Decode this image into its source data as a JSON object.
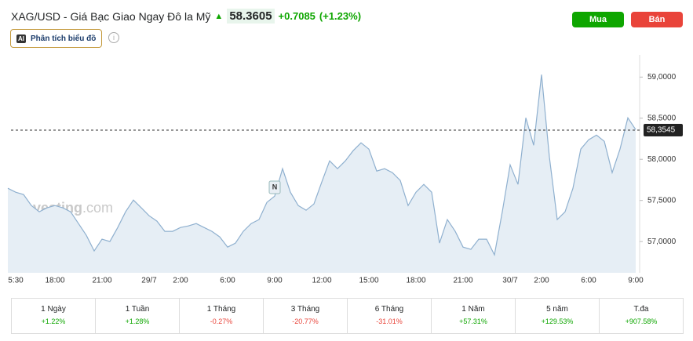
{
  "header": {
    "title": "XAG/USD - Giá Bạc Giao Ngay Đô la Mỹ",
    "price": "58.3605",
    "change": "+0.7085",
    "change_pct": "(+1.23%)"
  },
  "buttons": {
    "buy": "Mua",
    "sell": "Bán",
    "analysis": "Phân tích biểu đồ",
    "analysis_icon": "AI"
  },
  "chart_data": {
    "type": "area",
    "categories": [
      null,
      "5:30",
      null,
      null,
      null,
      null,
      "18:00",
      null,
      null,
      null,
      null,
      null,
      "21:00",
      null,
      null,
      null,
      null,
      null,
      "29/7",
      null,
      null,
      null,
      "2:00",
      null,
      null,
      null,
      null,
      null,
      "6:00",
      null,
      null,
      null,
      null,
      null,
      "9:00",
      null,
      null,
      null,
      null,
      null,
      "12:00",
      null,
      null,
      null,
      null,
      null,
      "15:00",
      null,
      null,
      null,
      null,
      null,
      "18:00",
      null,
      null,
      null,
      null,
      null,
      "21:00",
      null,
      null,
      null,
      null,
      null,
      "30/7",
      null,
      null,
      null,
      "2:00",
      null,
      null,
      null,
      null,
      null,
      "6:00",
      null,
      null,
      null,
      null,
      null,
      "9:00"
    ],
    "series": [
      {
        "name": "XAG/USD",
        "color": "#8fb0cf",
        "values": [
          57.648,
          57.6,
          57.571,
          57.438,
          57.362,
          57.41,
          57.438,
          57.41,
          57.362,
          57.219,
          57.076,
          56.886,
          57.029,
          57.0,
          57.171,
          57.362,
          57.505,
          57.41,
          57.314,
          57.248,
          57.124,
          57.124,
          57.171,
          57.19,
          57.219,
          57.171,
          57.124,
          57.057,
          56.933,
          56.981,
          57.124,
          57.219,
          57.267,
          57.476,
          57.552,
          57.886,
          57.6,
          57.438,
          57.381,
          57.457,
          57.724,
          57.981,
          57.886,
          57.981,
          58.105,
          58.2,
          58.124,
          57.857,
          57.886,
          57.838,
          57.743,
          57.438,
          57.6,
          57.695,
          57.6,
          56.981,
          57.267,
          57.124,
          56.933,
          56.905,
          57.029,
          57.029,
          56.838,
          57.362,
          57.933,
          57.695,
          58.505,
          58.171,
          59.03,
          58.029,
          57.267,
          57.362,
          57.648,
          58.124,
          58.238,
          58.295,
          58.219,
          57.838,
          58.124,
          58.505,
          58.362
        ]
      }
    ],
    "ylim": [
      56.62,
      59.27
    ],
    "yticks": [
      {
        "value": 57.0,
        "label": "57,0000"
      },
      {
        "value": 57.5,
        "label": "57,5000"
      },
      {
        "value": 58.0,
        "label": "58,0000"
      },
      {
        "value": 58.5,
        "label": "58,5000"
      },
      {
        "value": 59.0,
        "label": "59,0000"
      }
    ],
    "current": {
      "value": 58.3545,
      "label": "58,3545"
    },
    "annotation": "N",
    "watermark": "Investing",
    "watermark_suffix": ".com"
  },
  "periods": [
    {
      "name": "1 Ngày",
      "change": "+1.22%"
    },
    {
      "name": "1 Tuần",
      "change": "+1.28%"
    },
    {
      "name": "1 Tháng",
      "change": "-0.27%"
    },
    {
      "name": "3 Tháng",
      "change": "-20.77%"
    },
    {
      "name": "6 Tháng",
      "change": "-31.01%"
    },
    {
      "name": "1 Năm",
      "change": "+57.31%"
    },
    {
      "name": "5 năm",
      "change": "+129.53%"
    },
    {
      "name": "T.đa",
      "change": "+907.58%"
    }
  ]
}
